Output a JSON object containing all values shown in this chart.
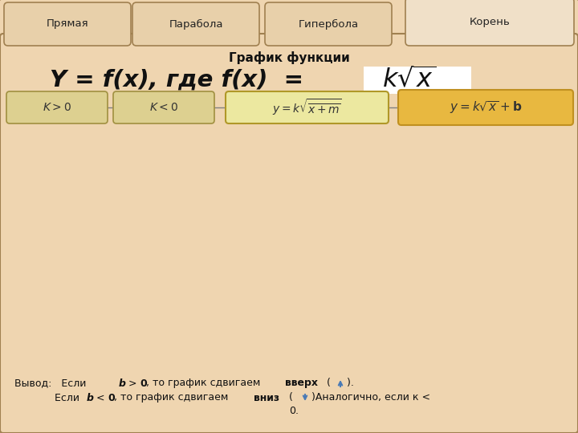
{
  "bg_color": "#efd5b0",
  "tab_bg": "#e8c99a",
  "title_small": "График функции",
  "title_large": "Y = f(x), где f(x)  =",
  "tabs": [
    "Прямая",
    "Парабола",
    "Гипербола",
    "Корень"
  ],
  "curve1_color": "#880088",
  "curve2_color": "#191970",
  "curve3_color": "#1a7a50",
  "xmin": -5.5,
  "xmax": 11.8,
  "ymin": -2.5,
  "ymax": 4.8,
  "arrow_color": "#4a7ab5",
  "grid_color": "#aabbd0",
  "graph_bg": "#f0ece0",
  "box1_color": "#d8c87a",
  "box2_color": "#d8c87a",
  "box3_color": "#e8d890",
  "box4_color": "#e8b860",
  "box3_border": "#b89830",
  "box4_border": "#c8a030"
}
